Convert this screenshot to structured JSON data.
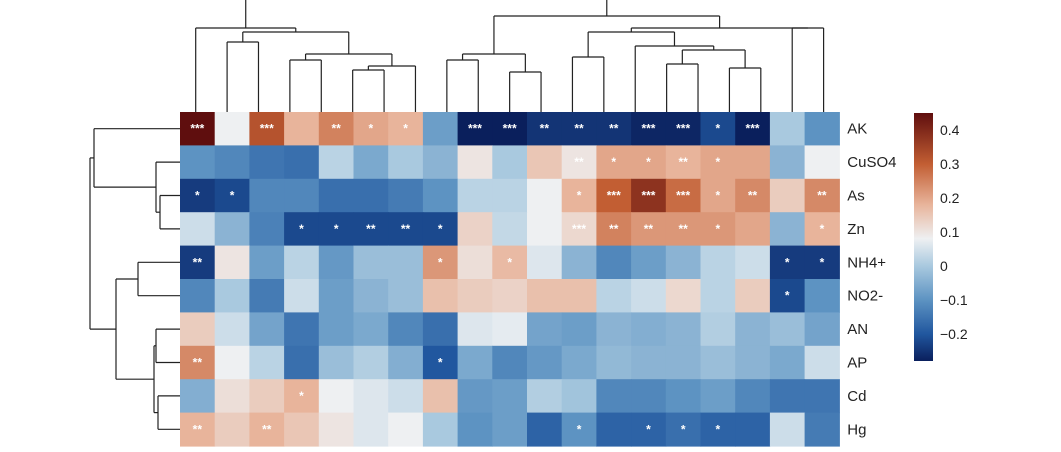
{
  "chart_data": {
    "type": "heatmap",
    "rows": [
      "AK",
      "CuSO4",
      "As",
      "Zn",
      "NH4+",
      "NO2-",
      "AN",
      "AP",
      "Cd",
      "Hg"
    ],
    "n_columns": 19,
    "values": [
      [
        0.45,
        0.08,
        0.32,
        0.18,
        0.25,
        0.2,
        0.18,
        -0.08,
        -0.28,
        -0.28,
        -0.25,
        -0.25,
        -0.25,
        -0.27,
        -0.27,
        -0.22,
        -0.28,
        0.0,
        -0.1
      ],
      [
        -0.1,
        -0.12,
        -0.15,
        -0.16,
        0.02,
        -0.06,
        0.0,
        -0.04,
        0.1,
        0.0,
        0.15,
        0.1,
        0.2,
        0.2,
        0.18,
        0.2,
        0.2,
        -0.04,
        0.08
      ],
      [
        -0.24,
        -0.22,
        -0.12,
        -0.12,
        -0.16,
        -0.16,
        -0.14,
        -0.1,
        0.02,
        0.02,
        0.08,
        0.18,
        0.3,
        0.38,
        0.28,
        0.2,
        0.24,
        0.14,
        0.24
      ],
      [
        0.04,
        -0.04,
        -0.13,
        -0.22,
        -0.22,
        -0.22,
        -0.22,
        -0.22,
        0.13,
        0.03,
        0.08,
        0.12,
        0.25,
        0.22,
        0.22,
        0.22,
        0.2,
        -0.04,
        0.18
      ],
      [
        -0.24,
        0.1,
        -0.08,
        0.02,
        -0.09,
        -0.02,
        -0.02,
        0.22,
        0.11,
        0.17,
        0.06,
        -0.04,
        -0.12,
        -0.08,
        -0.04,
        0.02,
        0.04,
        -0.24,
        -0.24
      ],
      [
        -0.12,
        0.0,
        -0.14,
        0.04,
        -0.08,
        -0.04,
        -0.02,
        0.16,
        0.14,
        0.13,
        0.16,
        0.16,
        0.02,
        0.04,
        0.12,
        0.02,
        0.14,
        -0.22,
        -0.1
      ],
      [
        0.14,
        0.04,
        -0.07,
        -0.15,
        -0.08,
        -0.06,
        -0.12,
        -0.16,
        0.06,
        0.07,
        -0.07,
        -0.08,
        -0.04,
        -0.05,
        -0.04,
        0.01,
        -0.04,
        -0.02,
        -0.07
      ],
      [
        0.24,
        0.08,
        0.02,
        -0.16,
        -0.02,
        0.01,
        -0.05,
        -0.2,
        -0.06,
        -0.12,
        -0.09,
        -0.06,
        -0.03,
        -0.04,
        -0.04,
        -0.02,
        -0.04,
        -0.06,
        0.04
      ],
      [
        -0.05,
        0.11,
        0.14,
        0.18,
        0.08,
        0.06,
        0.04,
        0.16,
        -0.09,
        -0.08,
        0.01,
        -0.01,
        -0.12,
        -0.12,
        -0.1,
        -0.08,
        -0.12,
        -0.15,
        -0.15
      ],
      [
        0.18,
        0.14,
        0.18,
        0.15,
        0.1,
        0.06,
        0.08,
        0.0,
        -0.1,
        -0.08,
        -0.18,
        -0.1,
        -0.18,
        -0.18,
        -0.16,
        -0.18,
        -0.18,
        0.04,
        -0.14
      ]
    ],
    "significance": [
      [
        "***",
        "",
        "***",
        "",
        "**",
        "*",
        "*",
        "",
        "***",
        "***",
        "**",
        "**",
        "**",
        "***",
        "***",
        "*",
        "***",
        "",
        ""
      ],
      [
        "",
        "",
        "",
        "",
        "",
        "",
        "",
        "",
        "",
        "",
        "",
        "**",
        "*",
        "*",
        "**",
        "*",
        "",
        "",
        ""
      ],
      [
        "*",
        "*",
        "",
        "",
        "",
        "",
        "",
        "",
        "",
        "",
        "",
        "*",
        "***",
        "***",
        "***",
        "*",
        "**",
        "",
        "**"
      ],
      [
        "",
        "",
        "",
        "*",
        "*",
        "**",
        "**",
        "*",
        "",
        "",
        "",
        "***",
        "**",
        "**",
        "**",
        "*",
        "",
        "",
        "*"
      ],
      [
        "**",
        "",
        "",
        "",
        "",
        "",
        "",
        "*",
        "",
        "*",
        "",
        "",
        "",
        "",
        "",
        "",
        "",
        "*",
        "*"
      ],
      [
        "",
        "",
        "",
        "",
        "",
        "",
        "",
        "",
        "",
        "",
        "",
        "",
        "",
        "",
        "",
        "",
        "",
        "*",
        ""
      ],
      [
        "",
        "",
        "",
        "",
        "",
        "",
        "",
        "",
        "",
        "",
        "",
        "",
        "",
        "",
        "",
        "",
        "",
        "",
        ""
      ],
      [
        "**",
        "",
        "",
        "",
        "",
        "",
        "",
        "*",
        "",
        "",
        "",
        "",
        "",
        "",
        "",
        "",
        "",
        "",
        ""
      ],
      [
        "",
        "",
        "",
        "*",
        "",
        "",
        "",
        "",
        "",
        "",
        "",
        "",
        "",
        "",
        "",
        "",
        "",
        "",
        ""
      ],
      [
        "**",
        "",
        "**",
        "",
        "",
        "",
        "",
        "",
        "",
        "",
        "",
        "*",
        "",
        "*",
        "*",
        "*",
        "",
        "",
        ""
      ]
    ],
    "colorbar": {
      "range": [
        -0.28,
        0.45
      ],
      "ticks": [
        -0.2,
        -0.1,
        0,
        0.1,
        0.2,
        0.3,
        0.4
      ],
      "tick_labels": [
        "−0.2",
        "−0.1",
        "0",
        "0.1",
        "0.2",
        "0.3",
        "0.4"
      ],
      "stops": [
        {
          "v": -0.28,
          "c": "#0a1f5c"
        },
        {
          "v": -0.2,
          "c": "#21579f"
        },
        {
          "v": -0.1,
          "c": "#5d93c2"
        },
        {
          "v": 0.0,
          "c": "#a9c9df"
        },
        {
          "v": 0.08,
          "c": "#eef0f2"
        },
        {
          "v": 0.18,
          "c": "#e8b49b"
        },
        {
          "v": 0.3,
          "c": "#c25e33"
        },
        {
          "v": 0.45,
          "c": "#5f0e0e"
        }
      ]
    },
    "row_dendrogram": true,
    "column_dendrogram": true,
    "grid": false,
    "legend_placement": "right"
  }
}
